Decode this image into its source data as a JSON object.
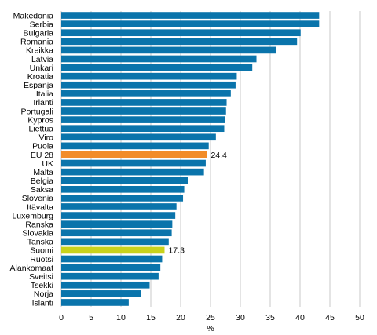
{
  "chart_data": {
    "type": "bar",
    "orientation": "horizontal",
    "categories": [
      "Makedonia",
      "Serbia",
      "Bulgaria",
      "Romania",
      "Kreikka",
      "Latvia",
      "Unkari",
      "Kroatia",
      "Espanja",
      "Italia",
      "Irlanti",
      "Portugali",
      "Kypros",
      "Liettua",
      "Viro",
      "Puola",
      "EU 28",
      "UK",
      "Malta",
      "Belgia",
      "Saksa",
      "Slovenia",
      "Itävalta",
      "Luxemburg",
      "Ranska",
      "Slovakia",
      "Tanska",
      "Suomi",
      "Ruotsi",
      "Alankomaat",
      "Sveitsi",
      "Tsekki",
      "Norja",
      "Islanti"
    ],
    "values": [
      43.2,
      43.2,
      40.1,
      39.5,
      36.0,
      32.7,
      32.0,
      29.4,
      29.2,
      28.4,
      27.7,
      27.6,
      27.5,
      27.3,
      25.9,
      24.7,
      24.4,
      24.2,
      23.9,
      21.2,
      20.6,
      20.4,
      19.3,
      19.1,
      18.6,
      18.5,
      18.0,
      17.3,
      16.9,
      16.6,
      16.3,
      14.8,
      13.4,
      11.3
    ],
    "highlight": {
      "EU 28": "#f28c28",
      "Suomi": "#c8d21c"
    },
    "bar_color": "#0a74ab",
    "data_labels": [
      {
        "category": "EU 28",
        "text": "24.4"
      },
      {
        "category": "Suomi",
        "text": "17.3"
      }
    ],
    "xlim": [
      0,
      50
    ],
    "xticks": [
      0,
      5,
      10,
      15,
      20,
      25,
      30,
      35,
      40,
      45,
      50
    ],
    "xlabel": "%",
    "ylabel": "",
    "title": "",
    "grid": "vertical",
    "grid_color": "#c8c8c8"
  }
}
